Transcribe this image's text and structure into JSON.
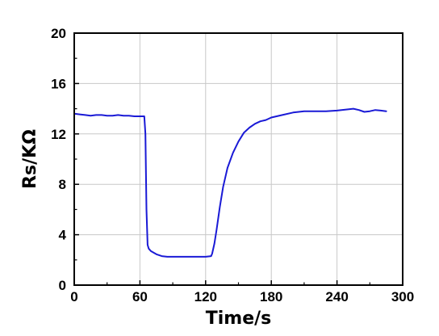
{
  "chart_data": {
    "type": "line",
    "xlabel": "Time/s",
    "ylabel": "Rs/KΩ",
    "xlim": [
      0,
      300
    ],
    "ylim": [
      0,
      20
    ],
    "xticks": [
      "0",
      "60",
      "120",
      "180",
      "240",
      "300"
    ],
    "yticks": [
      "0",
      "4",
      "8",
      "12",
      "16",
      "20"
    ],
    "grid": true,
    "legend": "none",
    "colors": {
      "line": "#1a1ad6",
      "grid": "#c8c8c8",
      "axis": "#000000"
    },
    "series": [
      {
        "x": [
          0,
          5,
          10,
          15,
          20,
          25,
          30,
          35,
          40,
          45,
          50,
          55,
          60,
          64,
          65,
          66,
          67,
          68,
          70,
          75,
          80,
          85,
          90,
          95,
          100,
          105,
          110,
          115,
          120,
          125,
          126,
          128,
          130,
          133,
          136,
          140,
          145,
          150,
          155,
          160,
          165,
          170,
          175,
          180,
          190,
          200,
          210,
          220,
          230,
          240,
          250,
          255,
          260,
          265,
          270,
          275,
          280,
          285
        ],
        "y": [
          13.6,
          13.55,
          13.5,
          13.45,
          13.5,
          13.5,
          13.45,
          13.45,
          13.5,
          13.45,
          13.45,
          13.4,
          13.4,
          13.4,
          12.0,
          6.0,
          3.2,
          2.9,
          2.7,
          2.45,
          2.3,
          2.25,
          2.25,
          2.25,
          2.25,
          2.25,
          2.25,
          2.25,
          2.25,
          2.3,
          2.5,
          3.3,
          4.4,
          6.2,
          7.8,
          9.3,
          10.5,
          11.4,
          12.1,
          12.5,
          12.8,
          13.0,
          13.1,
          13.3,
          13.5,
          13.7,
          13.8,
          13.8,
          13.8,
          13.85,
          13.95,
          14.0,
          13.9,
          13.75,
          13.8,
          13.9,
          13.85,
          13.8
        ]
      }
    ]
  }
}
